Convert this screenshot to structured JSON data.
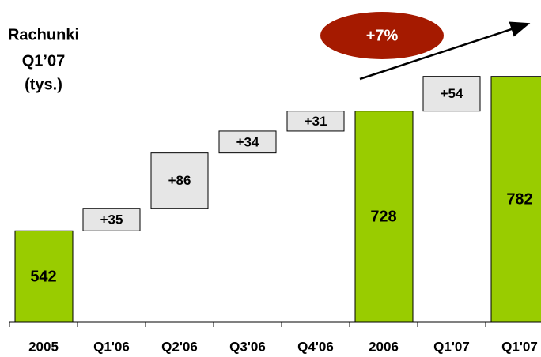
{
  "chart_data": {
    "type": "waterfall",
    "title": [
      "Rachunki",
      "Q1’07",
      "(tys.)"
    ],
    "annotation": "+7%",
    "categories": [
      "2005",
      "Q1'06",
      "Q2'06",
      "Q3'06",
      "Q4'06",
      "2006",
      "Q1'07",
      "Q1'07"
    ],
    "values": [
      542,
      35,
      86,
      34,
      31,
      728,
      54,
      782
    ],
    "value_labels": [
      "542",
      "+35",
      "+86",
      "+34",
      "+31",
      "728",
      "+54",
      "782"
    ],
    "totals": [
      true,
      false,
      false,
      false,
      false,
      true,
      false,
      true
    ],
    "total_color": "#99cc00",
    "delta_color": "#e6e6e6",
    "annotation_color": "#a51a00",
    "ylim": [
      400,
      800
    ]
  }
}
